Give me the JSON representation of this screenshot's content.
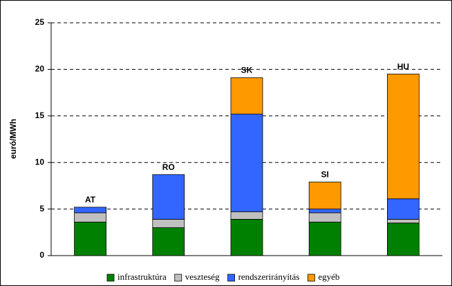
{
  "chart_data": {
    "type": "stacked-bar",
    "y_label": "euró/MWh",
    "categories": [
      "AT",
      "RO",
      "SK",
      "SI",
      "HU"
    ],
    "series": [
      {
        "name": "infrastruktúra",
        "color": "#008000",
        "values": [
          3.6,
          3.0,
          3.9,
          3.6,
          3.5
        ]
      },
      {
        "name": "veszteség",
        "color": "#c0c0c0",
        "values": [
          1.0,
          0.9,
          0.8,
          1.0,
          0.4
        ]
      },
      {
        "name": "rendszerirányítás",
        "color": "#3366ff",
        "values": [
          0.6,
          4.8,
          10.5,
          0.4,
          2.2
        ]
      },
      {
        "name": "egyéb",
        "color": "#ff9900",
        "values": [
          0,
          0,
          3.9,
          2.9,
          13.4
        ]
      }
    ],
    "ylim": [
      0,
      25
    ],
    "yticks": [
      0,
      5,
      10,
      15,
      20,
      25
    ],
    "grid": true,
    "legend": "bottom"
  }
}
